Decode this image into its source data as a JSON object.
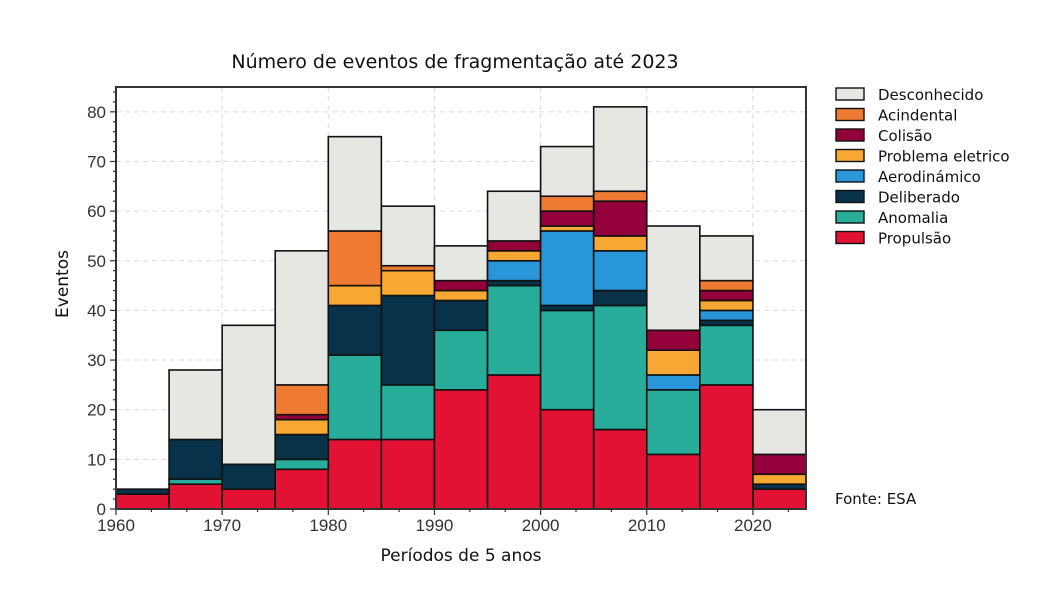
{
  "chart_data": {
    "type": "bar",
    "stacked": true,
    "title": "Número de eventos de fragmentação até 2023",
    "xlabel": "Períodos de 5 anos",
    "ylabel": "Eventos",
    "xlim": [
      1960,
      2025
    ],
    "ylim": [
      0,
      85
    ],
    "bin_width": 5,
    "x_ticks": [
      1960,
      1970,
      1980,
      1990,
      2000,
      2010,
      2020
    ],
    "y_ticks": [
      0,
      10,
      20,
      30,
      40,
      50,
      60,
      70,
      80
    ],
    "grid": true,
    "legend_position": "right-top",
    "source_note": "Fonte: ESA",
    "bins": [
      1960,
      1965,
      1970,
      1975,
      1980,
      1985,
      1990,
      1995,
      2000,
      2005,
      2010,
      2015,
      2020
    ],
    "series": [
      {
        "name": "Propulsão",
        "color": "#e31235",
        "values": [
          3,
          5,
          4,
          8,
          14,
          14,
          24,
          27,
          20,
          16,
          11,
          25,
          4
        ]
      },
      {
        "name": "Anomalia",
        "color": "#27ad99",
        "values": [
          0,
          1,
          0,
          2,
          17,
          11,
          12,
          18,
          20,
          25,
          13,
          12,
          0
        ]
      },
      {
        "name": "Deliberado",
        "color": "#08324a",
        "values": [
          1,
          8,
          5,
          5,
          10,
          18,
          6,
          1,
          1,
          3,
          0,
          1,
          1
        ]
      },
      {
        "name": "Aerodinámico",
        "color": "#2996d9",
        "values": [
          0,
          0,
          0,
          0,
          0,
          0,
          0,
          4,
          15,
          8,
          3,
          2,
          0
        ]
      },
      {
        "name": "Problema eletrico",
        "color": "#f7a833",
        "values": [
          0,
          0,
          0,
          3,
          4,
          5,
          2,
          2,
          1,
          3,
          5,
          2,
          2
        ]
      },
      {
        "name": "Colisão",
        "color": "#93003a",
        "values": [
          0,
          0,
          0,
          1,
          0,
          0,
          2,
          2,
          3,
          7,
          4,
          2,
          4
        ]
      },
      {
        "name": "Acindental",
        "color": "#ef7b33",
        "values": [
          0,
          0,
          0,
          6,
          11,
          1,
          0,
          0,
          3,
          2,
          0,
          2,
          0
        ]
      },
      {
        "name": "Desconhecido",
        "color": "#e6e6e3",
        "values": [
          0,
          14,
          28,
          27,
          19,
          12,
          7,
          10,
          10,
          17,
          21,
          9,
          9
        ]
      }
    ],
    "legend_order": [
      "Desconhecido",
      "Acindental",
      "Colisão",
      "Problema eletrico",
      "Aerodinámico",
      "Deliberado",
      "Anomalia",
      "Propulsão"
    ],
    "totals": [
      4,
      28,
      37,
      52,
      75,
      61,
      53,
      64,
      73,
      81,
      57,
      55,
      20
    ]
  }
}
